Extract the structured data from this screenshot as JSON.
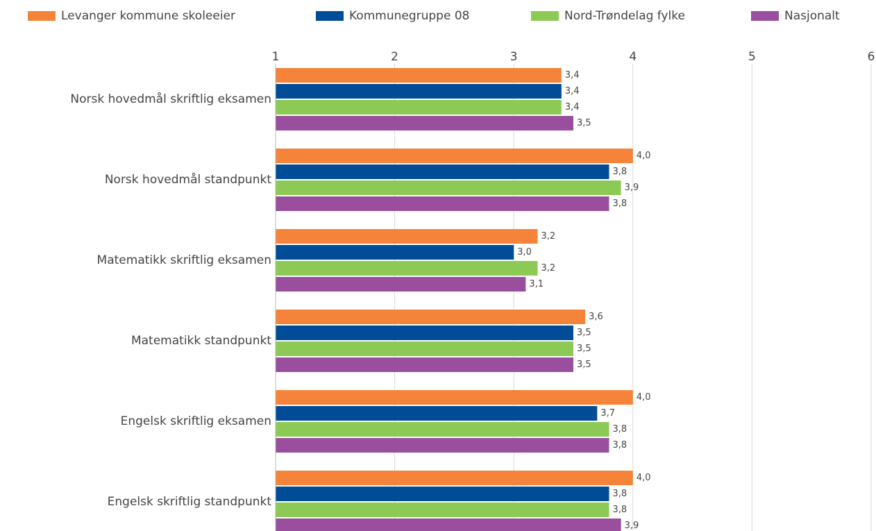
{
  "chart_data": {
    "type": "bar",
    "orientation": "horizontal",
    "categories": [
      "Norsk hovedmål skriftlig eksamen",
      "Norsk hovedmål standpunkt",
      "Matematikk skriftlig eksamen",
      "Matematikk standpunkt",
      "Engelsk skriftlig eksamen",
      "Engelsk skriftlig standpunkt"
    ],
    "series": [
      {
        "name": "Levanger kommune skoleeier",
        "color": "#f5843a",
        "values": [
          3.4,
          4.0,
          3.2,
          3.6,
          4.0,
          4.0
        ],
        "value_labels": [
          "3,4",
          "4,0",
          "3,2",
          "3,6",
          "4,0",
          "4,0"
        ]
      },
      {
        "name": "Kommunegruppe 08",
        "color": "#004c97",
        "values": [
          3.4,
          3.8,
          3.0,
          3.5,
          3.7,
          3.8
        ],
        "value_labels": [
          "3,4",
          "3,8",
          "3,0",
          "3,5",
          "3,7",
          "3,8"
        ]
      },
      {
        "name": "Nord-Trøndelag fylke",
        "color": "#8dc955",
        "values": [
          3.4,
          3.9,
          3.2,
          3.5,
          3.8,
          3.8
        ],
        "value_labels": [
          "3,4",
          "3,9",
          "3,2",
          "3,5",
          "3,8",
          "3,8"
        ]
      },
      {
        "name": "Nasjonalt",
        "color": "#9a4e9e",
        "values": [
          3.5,
          3.8,
          3.1,
          3.5,
          3.8,
          3.9
        ],
        "value_labels": [
          "3,5",
          "3,8",
          "3,1",
          "3,5",
          "3,8",
          "3,9"
        ]
      }
    ],
    "xlim": [
      1,
      6
    ],
    "xticks": [
      1,
      2,
      3,
      4,
      5,
      6
    ],
    "grid": true,
    "legend": "top"
  }
}
